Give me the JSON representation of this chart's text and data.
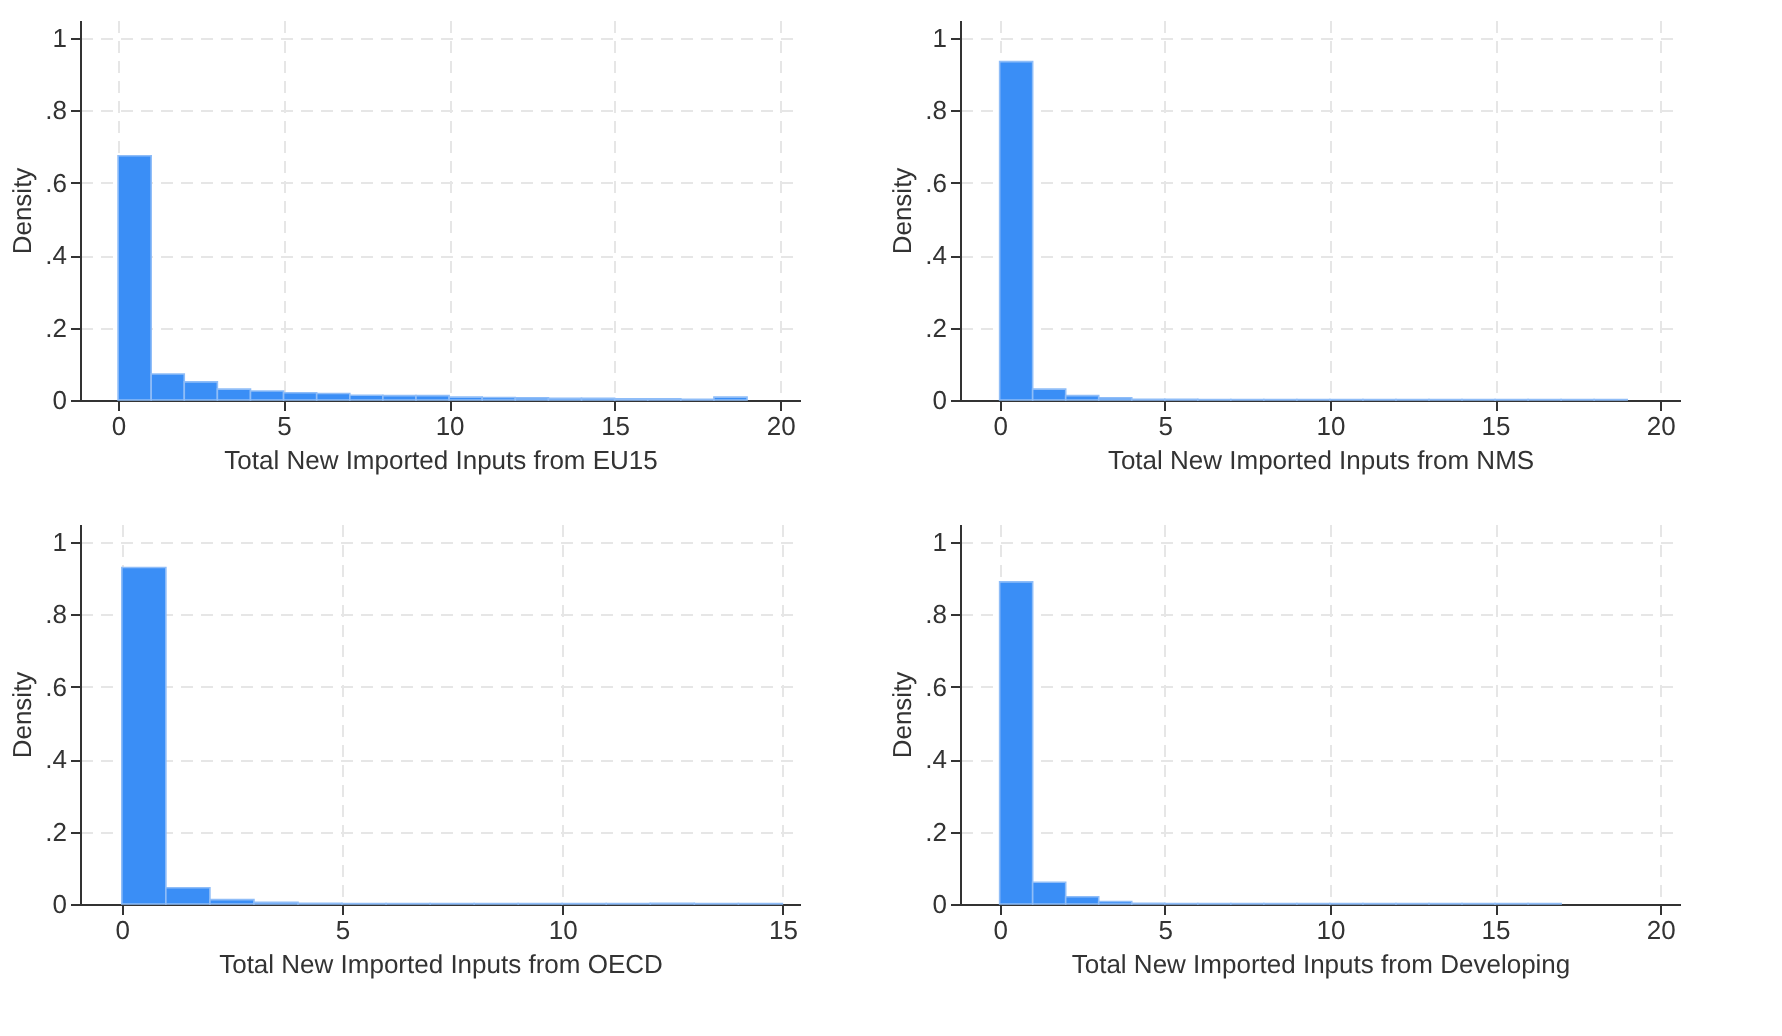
{
  "chart_data": [
    {
      "type": "histogram",
      "xlabel": "Total New Imported Inputs from EU15",
      "ylabel": "Density",
      "color": "#3a8ef6",
      "grid": true,
      "bins": [
        0,
        1,
        2,
        3,
        4,
        5,
        6,
        7,
        8,
        9,
        10,
        11,
        12,
        13,
        14,
        15,
        16,
        17,
        18,
        19
      ],
      "values": [
        0.675,
        0.072,
        0.05,
        0.03,
        0.025,
        0.02,
        0.018,
        0.013,
        0.012,
        0.012,
        0.008,
        0.007,
        0.006,
        0.005,
        0.005,
        0.003,
        0.003,
        0.002,
        0.008
      ],
      "xlim": [
        -1.15,
        20.6
      ],
      "xticks": [
        0,
        5,
        10,
        15,
        20
      ],
      "ylim": [
        0,
        1.05
      ],
      "yticks": [
        0,
        {
          "value": 0.2,
          "label": ".2"
        },
        {
          "value": 0.4,
          "label": ".4"
        },
        {
          "value": 0.6,
          "label": ".6"
        },
        {
          "value": 0.8,
          "label": ".8"
        },
        1
      ]
    },
    {
      "type": "histogram",
      "xlabel": "Total New Imported Inputs from NMS",
      "ylabel": "Density",
      "color": "#3a8ef6",
      "grid": true,
      "bins": [
        0,
        1,
        2,
        3,
        4,
        5,
        6,
        7,
        8,
        9,
        10,
        11,
        12,
        13,
        14,
        15,
        16,
        17,
        18,
        19
      ],
      "values": [
        0.935,
        0.03,
        0.012,
        0.006,
        0.002,
        0.002,
        0.001,
        0.001,
        0.001,
        0.001,
        0.001,
        0.001,
        0.001,
        0.001,
        0.001,
        0.001,
        0.001,
        0.001,
        0.001
      ],
      "xlim": [
        -1.2,
        20.6
      ],
      "xticks": [
        0,
        5,
        10,
        15,
        20
      ],
      "ylim": [
        0,
        1.05
      ],
      "yticks": [
        0,
        {
          "value": 0.2,
          "label": ".2"
        },
        {
          "value": 0.4,
          "label": ".4"
        },
        {
          "value": 0.6,
          "label": ".6"
        },
        {
          "value": 0.8,
          "label": ".8"
        },
        1
      ]
    },
    {
      "type": "histogram",
      "xlabel": "Total New Imported Inputs from OECD",
      "ylabel": "Density",
      "color": "#3a8ef6",
      "grid": true,
      "bins": [
        0,
        1,
        2,
        3,
        4,
        5,
        6,
        7,
        8,
        9,
        10,
        11,
        12,
        13,
        14,
        15
      ],
      "values": [
        0.93,
        0.045,
        0.012,
        0.005,
        0.002,
        0.001,
        0.001,
        0.001,
        0.001,
        0.001,
        0.001,
        0.001,
        0.002,
        0.001,
        0.001
      ],
      "xlim": [
        -0.95,
        15.4
      ],
      "xticks": [
        0,
        5,
        10,
        15
      ],
      "ylim": [
        0,
        1.05
      ],
      "yticks": [
        0,
        {
          "value": 0.2,
          "label": ".2"
        },
        {
          "value": 0.4,
          "label": ".4"
        },
        {
          "value": 0.6,
          "label": ".6"
        },
        {
          "value": 0.8,
          "label": ".8"
        },
        1
      ]
    },
    {
      "type": "histogram",
      "xlabel": "Total New Imported Inputs from Developing",
      "ylabel": "Density",
      "color": "#3a8ef6",
      "grid": true,
      "bins": [
        0,
        1,
        2,
        3,
        4,
        5,
        6,
        7,
        8,
        9,
        10,
        11,
        12,
        13,
        14,
        15,
        16,
        17
      ],
      "values": [
        0.89,
        0.06,
        0.02,
        0.007,
        0.002,
        0.001,
        0.001,
        0.001,
        0.001,
        0.001,
        0.001,
        0.001,
        0.001,
        0.001,
        0.001,
        0.001,
        0.001
      ],
      "xlim": [
        -1.2,
        20.6
      ],
      "xticks": [
        0,
        5,
        10,
        15,
        20
      ],
      "ylim": [
        0,
        1.05
      ],
      "yticks": [
        0,
        {
          "value": 0.2,
          "label": ".2"
        },
        {
          "value": 0.4,
          "label": ".4"
        },
        {
          "value": 0.6,
          "label": ".6"
        },
        {
          "value": 0.8,
          "label": ".8"
        },
        1
      ]
    }
  ]
}
